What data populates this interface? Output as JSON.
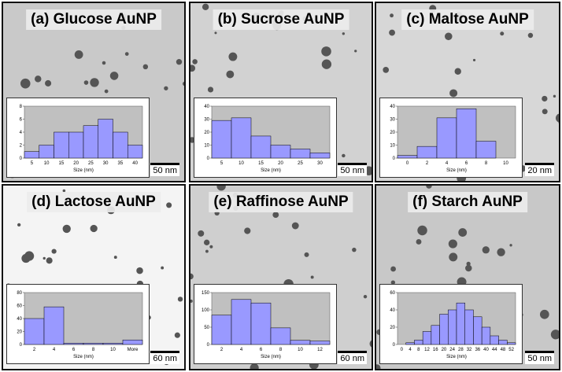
{
  "panels": [
    {
      "title": "(a) Glucose AuNP",
      "scale_bar": "50 nm",
      "histogram": {
        "xlabel": "Size (nm)",
        "categories": [
          "5",
          "10",
          "15",
          "20",
          "25",
          "30",
          "35",
          "40"
        ],
        "values": [
          1,
          2,
          4,
          4,
          5,
          6,
          4,
          2
        ],
        "ylim": [
          0,
          8
        ],
        "yticks": [
          0,
          2,
          4,
          6,
          8
        ]
      }
    },
    {
      "title": "(b) Sucrose AuNP",
      "scale_bar": "50 nm",
      "histogram": {
        "xlabel": "Size (nm)",
        "categories": [
          "5",
          "10",
          "15",
          "20",
          "25",
          "30"
        ],
        "values": [
          29,
          31,
          17,
          10,
          7,
          4
        ],
        "ylim": [
          0,
          40
        ],
        "yticks": [
          0,
          10,
          20,
          30,
          40
        ]
      }
    },
    {
      "title": "(c) Maltose AuNP",
      "scale_bar": "20 nm",
      "histogram": {
        "xlabel": "Size (nm)",
        "categories": [
          "0",
          "2",
          "4",
          "6",
          "8",
          "10"
        ],
        "values": [
          2,
          9,
          31,
          38,
          13,
          0
        ],
        "ylim": [
          0,
          40
        ],
        "yticks": [
          0,
          10,
          20,
          30,
          40
        ]
      }
    },
    {
      "title": "(d) Lactose AuNP",
      "scale_bar": "60 nm",
      "histogram": {
        "xlabel": "Size (nm)",
        "categories": [
          "2",
          "4",
          "6",
          "8",
          "10",
          "More"
        ],
        "values": [
          40,
          58,
          2,
          2,
          2,
          7
        ],
        "ylim": [
          0,
          80
        ],
        "yticks": [
          0,
          20,
          40,
          60,
          80
        ]
      }
    },
    {
      "title": "(e) Raffinose AuNP",
      "scale_bar": "60 nm",
      "histogram": {
        "xlabel": "Size (nm)",
        "categories": [
          "2",
          "4",
          "6",
          "8",
          "10",
          "12"
        ],
        "values": [
          85,
          130,
          120,
          48,
          12,
          10
        ],
        "ylim": [
          0,
          150
        ],
        "yticks": [
          0,
          50,
          100,
          150
        ]
      }
    },
    {
      "title": "(f) Starch AuNP",
      "scale_bar": "50 nm",
      "histogram": {
        "xlabel": "Size (nm)",
        "categories": [
          "0",
          "4",
          "8",
          "12",
          "16",
          "20",
          "24",
          "28",
          "32",
          "36",
          "40",
          "44",
          "48",
          "52"
        ],
        "values": [
          0,
          2,
          5,
          15,
          22,
          35,
          40,
          48,
          40,
          32,
          20,
          10,
          5,
          2
        ],
        "ylim": [
          0,
          60
        ],
        "yticks": [
          0,
          20,
          40,
          60
        ]
      }
    }
  ]
}
